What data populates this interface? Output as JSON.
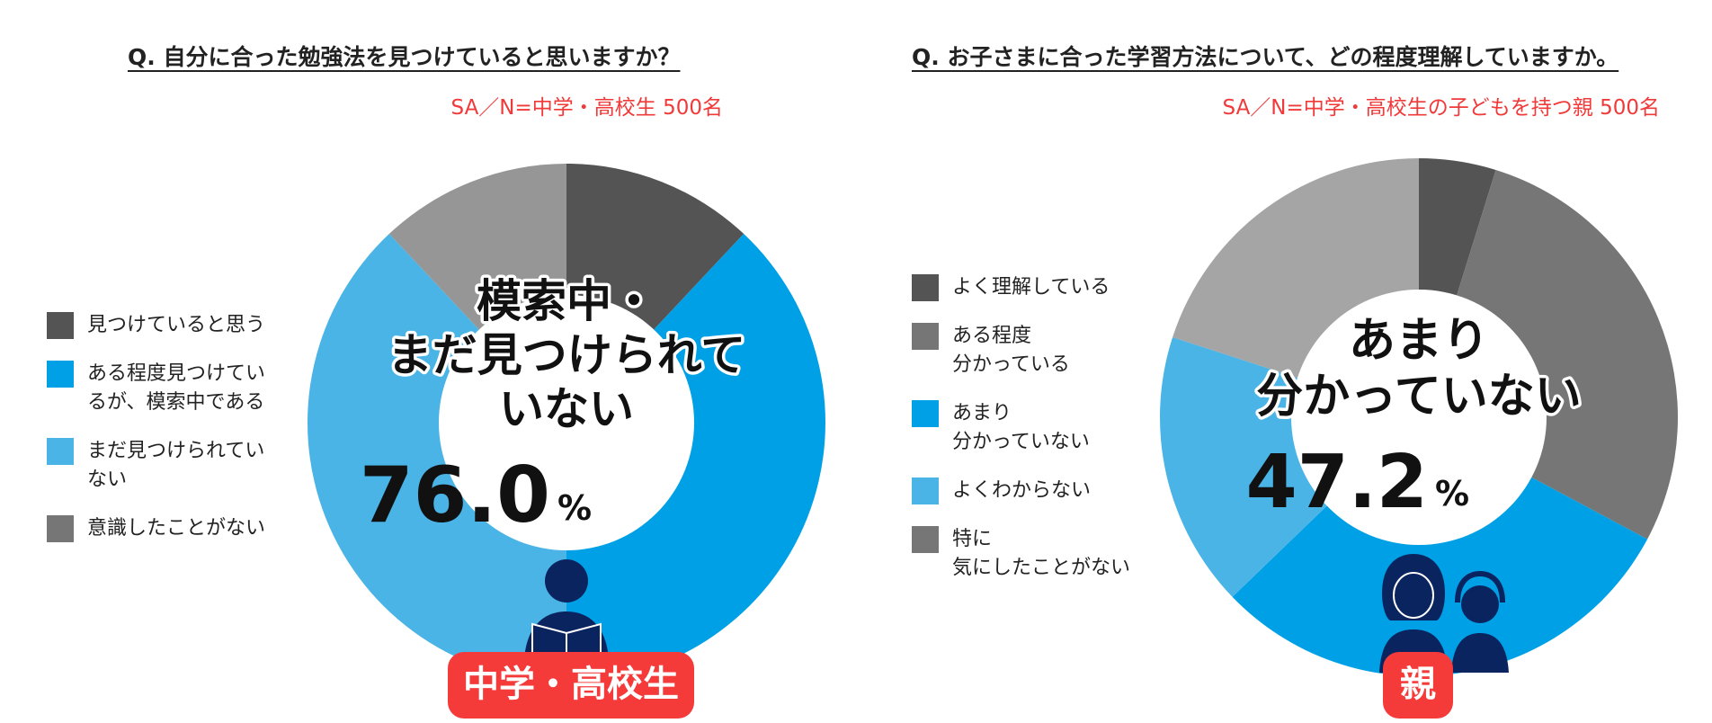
{
  "colors": {
    "dark": "#545454",
    "gray": "#767676",
    "lightgray": "#969696",
    "lightergray": "#a5a5a5",
    "blue": "#00a0e6",
    "lightblue": "#4ab4e6",
    "navy": "#0a2460",
    "red": "#f53a3a"
  },
  "left": {
    "question": "Q. 自分に合った勉強法を見つけていると思いますか？",
    "sample": "SA／N=中学・高校生 500名",
    "center_heading": [
      "模索中・",
      "まだ見つけられて",
      "いない"
    ],
    "center_value": "76.0",
    "center_unit": "%",
    "badge": "中学・高校生",
    "person_icon": "student-reading-icon",
    "legend": [
      {
        "label": "見つけていると思う",
        "color": "#545454"
      },
      {
        "label": "ある程度見つけてい\nるが、模索中である",
        "color": "#00a0e6"
      },
      {
        "label": "まだ見つけられてい\nない",
        "color": "#4ab4e6"
      },
      {
        "label": "意識したことがない",
        "color": "#767676"
      }
    ]
  },
  "right": {
    "question": "Q. お子さまに合った学習方法について、どの程度理解していますか。",
    "sample": "SA／N=中学・高校生の子どもを持つ親 500名",
    "center_heading": [
      "あまり",
      "分かっていない"
    ],
    "center_value": "47.2",
    "center_unit": "%",
    "badge": "親",
    "person_icon": "parents-icon",
    "legend": [
      {
        "label": "よく理解している",
        "color": "#545454"
      },
      {
        "label": "ある程度\n分かっている",
        "color": "#767676"
      },
      {
        "label": "あまり\n分かっていない",
        "color": "#00a0e6"
      },
      {
        "label": "よくわからない",
        "color": "#4ab4e6"
      },
      {
        "label": "特に\n気にしたことがない",
        "color": "#767676"
      }
    ]
  },
  "chart_data": [
    {
      "type": "pie",
      "title": "Q. 自分に合った勉強法を見つけていると思いますか？",
      "categories": [
        "見つけていると思う",
        "ある程度見つけているが、模索中である",
        "まだ見つけられていない",
        "意識したことがない"
      ],
      "values": [
        12.0,
        38.0,
        38.0,
        12.0
      ],
      "colors": [
        "#545454",
        "#00a0e6",
        "#4ab4e6",
        "#969696"
      ],
      "highlight": {
        "label": "模索中・まだ見つけられていない",
        "value": 76.0,
        "unit": "%"
      },
      "legend": "left"
    },
    {
      "type": "pie",
      "title": "Q. お子さまに合った学習方法について、どの程度理解していますか。",
      "categories": [
        "よく理解している",
        "ある程度分かっている",
        "あまり分かっていない",
        "よくわからない",
        "特に気にしたことがない"
      ],
      "values": [
        4.8,
        28.0,
        30.0,
        17.2,
        20.0
      ],
      "colors": [
        "#545454",
        "#767676",
        "#00a0e6",
        "#4ab4e6",
        "#a5a5a5"
      ],
      "highlight": {
        "label": "あまり分かっていない",
        "value": 47.2,
        "unit": "%"
      },
      "legend": "left"
    }
  ]
}
